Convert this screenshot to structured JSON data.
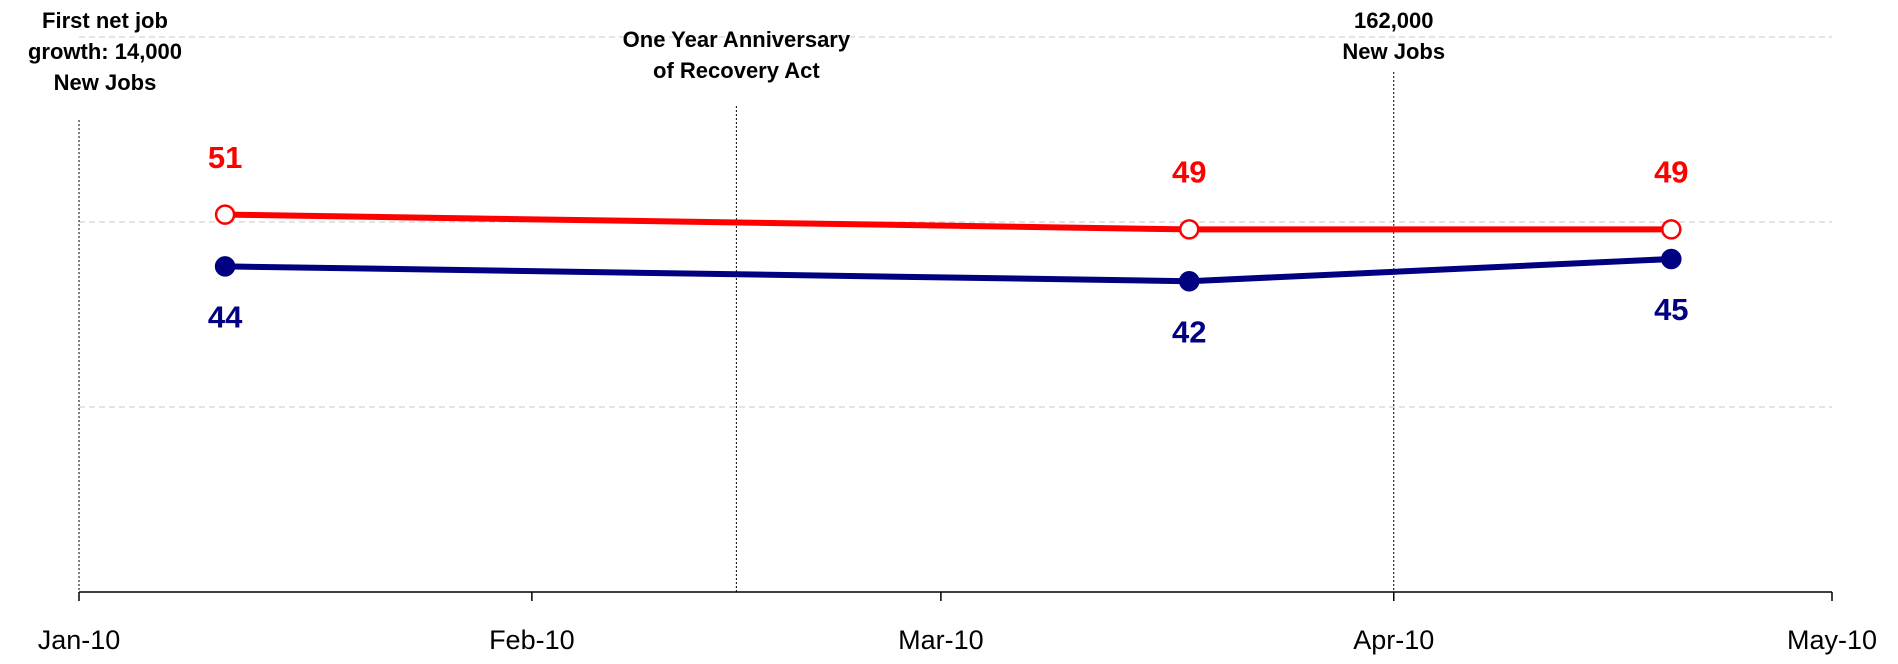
{
  "chart_data": {
    "type": "line",
    "xlim": [
      0,
      120
    ],
    "xticks": [
      {
        "value": 0,
        "label": "Jan-10"
      },
      {
        "value": 31,
        "label": "Feb-10"
      },
      {
        "value": 59,
        "label": "Mar-10"
      },
      {
        "value": 90,
        "label": "Apr-10"
      },
      {
        "value": 120,
        "label": "May-10"
      }
    ],
    "ylim": [
      0,
      75
    ],
    "yticks": [
      25,
      50,
      75
    ],
    "grid": true,
    "series": [
      {
        "color": "#ff0000",
        "marker": "hollow",
        "x": [
          10,
          76,
          109
        ],
        "values": [
          51,
          49,
          49
        ]
      },
      {
        "color": "#000080",
        "marker": "filled",
        "x": [
          10,
          76,
          109
        ],
        "values": [
          44,
          42,
          45
        ]
      }
    ],
    "annotations": [
      {
        "x": 0,
        "lines": [
          "First net job",
          "growth: 14,000",
          "New Jobs"
        ]
      },
      {
        "x": 45,
        "lines": [
          "One Year Anniversary",
          "of Recovery Act"
        ]
      },
      {
        "x": 90,
        "lines": [
          "162,000",
          "New Jobs"
        ]
      }
    ]
  }
}
